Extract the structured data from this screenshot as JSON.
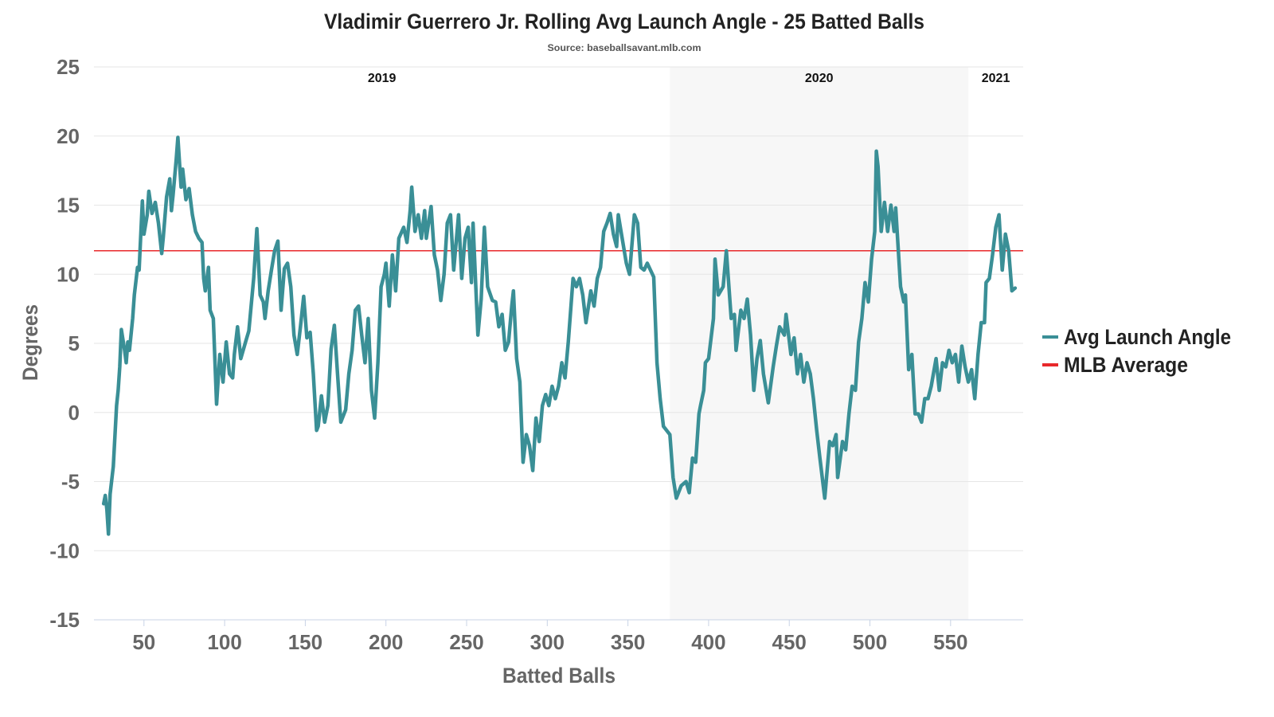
{
  "chart_data": {
    "type": "line",
    "title": "Vladimir Guerrero Jr. Rolling Avg Launch Angle - 25 Batted Balls",
    "subtitle": "Source: baseballsavant.mlb.com",
    "xlabel": "Batted Balls",
    "ylabel": "Degrees",
    "xlim": [
      19,
      595
    ],
    "ylim": [
      -15,
      25
    ],
    "x_ticks": [
      "50",
      "100",
      "150",
      "200",
      "250",
      "300",
      "350",
      "400",
      "450",
      "500",
      "550"
    ],
    "x_tick_values": [
      50,
      100,
      150,
      200,
      250,
      300,
      350,
      400,
      450,
      500,
      550
    ],
    "y_ticks": [
      "25",
      "20",
      "15",
      "10",
      "5",
      "0",
      "-5",
      "-10",
      "-15"
    ],
    "y_tick_values": [
      25,
      20,
      15,
      10,
      5,
      0,
      -5,
      -10,
      -15
    ],
    "grid": true,
    "legend_placement": "right",
    "seasons": [
      {
        "label": "2019",
        "start": 19,
        "end": 376,
        "shaded": false
      },
      {
        "label": "2020",
        "start": 376,
        "end": 561,
        "shaded": true
      },
      {
        "label": "2021",
        "start": 561,
        "end": 595,
        "shaded": false
      }
    ],
    "reference_line": {
      "name": "MLB Average",
      "value": 11.7,
      "color": "#e8292b"
    },
    "series": [
      {
        "name": "Avg Launch Angle",
        "color": "#3a8f96",
        "x": [
          25,
          26,
          27,
          28,
          29,
          31,
          33,
          34,
          35,
          36,
          38,
          39,
          40,
          41,
          43,
          44,
          46,
          47,
          49,
          50,
          52,
          53,
          55,
          57,
          59,
          61,
          62,
          64,
          66,
          67,
          68,
          70,
          71,
          73,
          74,
          76,
          78,
          80,
          82,
          84,
          86,
          87,
          88,
          90,
          91,
          93,
          95,
          97,
          99,
          101,
          103,
          105,
          106,
          108,
          110,
          113,
          115,
          118,
          120,
          122,
          124,
          125,
          127,
          129,
          131,
          133,
          135,
          137,
          139,
          141,
          143,
          145,
          147,
          149,
          151,
          153,
          155,
          157,
          158,
          160,
          162,
          164,
          166,
          168,
          170,
          172,
          175,
          177,
          179,
          181,
          183,
          185,
          187,
          189,
          191,
          193,
          195,
          197,
          199,
          200,
          202,
          204,
          206,
          208,
          211,
          213,
          215,
          216,
          218,
          220,
          222,
          224,
          225,
          228,
          230,
          232,
          234,
          236,
          238,
          240,
          242,
          245,
          247,
          249,
          251,
          253,
          254,
          257,
          259,
          261,
          263,
          266,
          268,
          270,
          272,
          274,
          276,
          278,
          279,
          281,
          283,
          285,
          287,
          289,
          291,
          293,
          295,
          297,
          299,
          301,
          303,
          305,
          307,
          309,
          311,
          313,
          316,
          318,
          320,
          322,
          324,
          327,
          329,
          331,
          333,
          335,
          337,
          339,
          341,
          343,
          344,
          346,
          349,
          351,
          354,
          356,
          358,
          360,
          362,
          366,
          368,
          370,
          372,
          374,
          376,
          378,
          380,
          383,
          386,
          388,
          390,
          392,
          394,
          395,
          397,
          398,
          400,
          403,
          404,
          406,
          409,
          411,
          414,
          416,
          417,
          420,
          422,
          424,
          426,
          428,
          430,
          432,
          434,
          437,
          440,
          442,
          444,
          447,
          448,
          451,
          453,
          455,
          457,
          459,
          461,
          463,
          465,
          467,
          469,
          472,
          475,
          477,
          479,
          480,
          483,
          485,
          487,
          489,
          491,
          493,
          495,
          497,
          499,
          501,
          503,
          504,
          505,
          507,
          509,
          511,
          513,
          515,
          516,
          519,
          521,
          522,
          524,
          526,
          528,
          530,
          532,
          534,
          536,
          538,
          541,
          543,
          545,
          547,
          549,
          551,
          553,
          555,
          557,
          559,
          561,
          563,
          565,
          567,
          569,
          571,
          572,
          574,
          576,
          578,
          580,
          582,
          584,
          586,
          588,
          590
        ],
        "y": [
          -6.6,
          -6.0,
          -7.0,
          -8.8,
          -5.9,
          -3.9,
          0.5,
          1.6,
          3.3,
          6.0,
          4.5,
          3.6,
          5.1,
          4.5,
          6.8,
          8.5,
          10.5,
          10.3,
          15.3,
          12.9,
          14.3,
          16.0,
          14.4,
          15.2,
          13.7,
          11.5,
          12.7,
          15.6,
          16.9,
          14.6,
          15.7,
          18.3,
          19.9,
          16.3,
          17.6,
          15.4,
          16.2,
          14.3,
          13.1,
          12.6,
          12.3,
          9.7,
          8.8,
          10.5,
          7.4,
          6.8,
          0.6,
          4.2,
          2.2,
          5.1,
          2.8,
          2.5,
          4.2,
          6.2,
          3.9,
          5.1,
          5.9,
          9.7,
          13.3,
          8.5,
          8.0,
          6.8,
          8.8,
          10.3,
          11.7,
          12.4,
          7.4,
          10.4,
          10.8,
          9.1,
          5.6,
          4.2,
          6.2,
          8.4,
          5.4,
          5.8,
          2.8,
          -1.3,
          -1.0,
          1.2,
          -0.7,
          0.5,
          4.6,
          6.3,
          2.8,
          -0.7,
          0.2,
          2.8,
          4.5,
          7.4,
          7.7,
          5.6,
          3.6,
          6.8,
          1.6,
          -0.4,
          3.6,
          9.1,
          10.0,
          10.8,
          7.7,
          11.4,
          8.8,
          12.6,
          13.4,
          12.3,
          14.6,
          16.3,
          13.1,
          14.3,
          12.6,
          14.6,
          12.6,
          14.9,
          11.4,
          10.3,
          8.1,
          10.0,
          13.7,
          14.3,
          10.3,
          14.3,
          9.7,
          12.6,
          13.4,
          9.4,
          13.7,
          5.6,
          8.2,
          13.4,
          9.1,
          8.1,
          8.0,
          6.2,
          7.1,
          4.5,
          5.1,
          7.7,
          8.8,
          3.9,
          2.2,
          -3.6,
          -1.6,
          -2.4,
          -4.2,
          -0.4,
          -2.1,
          0.5,
          1.3,
          0.5,
          1.9,
          1.0,
          1.9,
          3.6,
          2.5,
          5.1,
          9.7,
          9.1,
          9.7,
          8.5,
          6.5,
          8.8,
          7.7,
          9.7,
          10.5,
          13.1,
          13.7,
          14.4,
          12.9,
          12.0,
          14.3,
          12.9,
          10.8,
          10.0,
          14.3,
          13.7,
          10.5,
          10.3,
          10.8,
          9.8,
          3.6,
          1.0,
          -1.0,
          -1.3,
          -1.6,
          -4.7,
          -6.2,
          -5.3,
          -5.0,
          -5.8,
          -3.3,
          -3.6,
          -0.1,
          0.5,
          1.6,
          3.6,
          3.9,
          6.8,
          11.1,
          8.5,
          9.1,
          11.7,
          6.8,
          7.1,
          4.5,
          7.4,
          6.8,
          8.2,
          5.6,
          1.6,
          3.9,
          5.2,
          2.8,
          0.7,
          3.3,
          4.8,
          6.2,
          5.6,
          7.1,
          4.2,
          5.4,
          2.8,
          4.2,
          2.2,
          3.6,
          2.8,
          1.0,
          -1.3,
          -3.3,
          -6.2,
          -2.1,
          -2.4,
          -1.6,
          -4.7,
          -2.1,
          -2.7,
          -0.1,
          1.9,
          1.6,
          5.1,
          6.8,
          9.4,
          8.0,
          11.1,
          13.1,
          18.9,
          17.8,
          13.1,
          15.2,
          13.1,
          15.0,
          13.1,
          14.8,
          9.1,
          8.0,
          8.5,
          3.1,
          4.2,
          -0.1,
          -0.1,
          -0.7,
          1.0,
          1.0,
          1.9,
          3.9,
          1.6,
          3.6,
          3.3,
          4.5,
          3.6,
          4.2,
          2.2,
          4.8,
          3.3,
          2.2,
          3.1,
          1.0,
          4.2,
          6.5,
          6.5,
          9.4,
          9.7,
          11.4,
          13.4,
          14.3,
          10.3,
          12.9,
          11.7,
          8.8,
          9.0
        ]
      }
    ]
  }
}
